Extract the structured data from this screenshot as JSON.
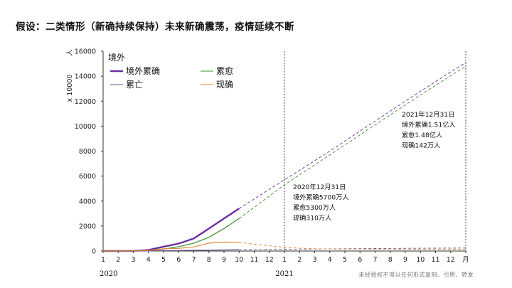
{
  "slide": {
    "title": "假设：二类情形（新确持续保持）未来新确震荡，疫情延续不断",
    "footer": "未经授权不得以任何形式复制、引用、转发"
  },
  "chart_data": {
    "type": "line",
    "title": "境外",
    "y_unit_multiplier": "x 10000",
    "y_unit": "人",
    "ylim": [
      0,
      16000
    ],
    "y_ticks": [
      0,
      2000,
      4000,
      6000,
      8000,
      10000,
      12000,
      14000,
      16000
    ],
    "x_month_range": [
      1,
      25
    ],
    "x_tick_labels": [
      "1",
      "2",
      "3",
      "4",
      "5",
      "6",
      "7",
      "8",
      "9",
      "10",
      "11",
      "12",
      "1",
      "2",
      "3",
      "4",
      "5",
      "6",
      "7",
      "8",
      "9",
      "10",
      "11",
      "12",
      "月"
    ],
    "year_labels": [
      {
        "label": "2020",
        "month": 1
      },
      {
        "label": "2021",
        "month": 13
      }
    ],
    "legend": [
      {
        "name": "境外累确",
        "color": "#6a2fa0"
      },
      {
        "name": "累愈",
        "color": "#3c8f2a"
      },
      {
        "name": "累亡",
        "color": "#6a4f8f"
      },
      {
        "name": "现确",
        "color": "#e08a3a"
      }
    ],
    "series": [
      {
        "name": "境外累确",
        "color": "#6a2fa0",
        "actual": [
          [
            1,
            0
          ],
          [
            2,
            0
          ],
          [
            3,
            10
          ],
          [
            4,
            80
          ],
          [
            5,
            350
          ],
          [
            6,
            600
          ],
          [
            7,
            1000
          ],
          [
            8,
            1800
          ],
          [
            9,
            2600
          ],
          [
            10,
            3400
          ]
        ],
        "projected": [
          [
            10,
            3400
          ],
          [
            13,
            5700
          ],
          [
            16,
            8000
          ],
          [
            19,
            10400
          ],
          [
            22,
            12800
          ],
          [
            25,
            15100
          ]
        ]
      },
      {
        "name": "累愈",
        "color": "#3c8f2a",
        "actual": [
          [
            1,
            0
          ],
          [
            2,
            0
          ],
          [
            3,
            5
          ],
          [
            4,
            30
          ],
          [
            5,
            150
          ],
          [
            6,
            350
          ],
          [
            7,
            620
          ],
          [
            8,
            1100
          ],
          [
            9,
            1800
          ],
          [
            10,
            2600
          ]
        ],
        "projected": [
          [
            10,
            2600
          ],
          [
            13,
            5300
          ],
          [
            16,
            7700
          ],
          [
            19,
            10100
          ],
          [
            22,
            12500
          ],
          [
            25,
            14800
          ]
        ]
      },
      {
        "name": "累亡",
        "color": "#6a4f8f",
        "actual": [
          [
            1,
            0
          ],
          [
            2,
            0
          ],
          [
            3,
            1
          ],
          [
            4,
            5
          ],
          [
            5,
            20
          ],
          [
            6,
            40
          ],
          [
            7,
            55
          ],
          [
            8,
            70
          ],
          [
            9,
            85
          ],
          [
            10,
            100
          ]
        ],
        "projected": [
          [
            10,
            100
          ],
          [
            13,
            140
          ],
          [
            16,
            170
          ],
          [
            19,
            200
          ],
          [
            22,
            220
          ],
          [
            25,
            240
          ]
        ]
      },
      {
        "name": "现确",
        "color": "#e08a3a",
        "actual": [
          [
            1,
            0
          ],
          [
            2,
            0
          ],
          [
            3,
            5
          ],
          [
            4,
            50
          ],
          [
            5,
            180
          ],
          [
            6,
            210
          ],
          [
            7,
            330
          ],
          [
            8,
            630
          ],
          [
            9,
            720
          ],
          [
            10,
            700
          ]
        ],
        "projected": [
          [
            10,
            700
          ],
          [
            11,
            550
          ],
          [
            12,
            420
          ],
          [
            13,
            310
          ],
          [
            14,
            230
          ],
          [
            15,
            180
          ],
          [
            16,
            160
          ],
          [
            19,
            150
          ],
          [
            22,
            145
          ],
          [
            25,
            142
          ]
        ]
      }
    ],
    "markers": [
      {
        "month": 13,
        "lines": [
          "2020年12月31日",
          "境外累确5700万人",
          "累愈5300万人",
          "现确310万人"
        ]
      },
      {
        "month": 25,
        "lines": [
          "2021年12月31日",
          "境外累确1.51亿人",
          "累愈1.48亿人",
          "现确142万人"
        ]
      }
    ]
  }
}
